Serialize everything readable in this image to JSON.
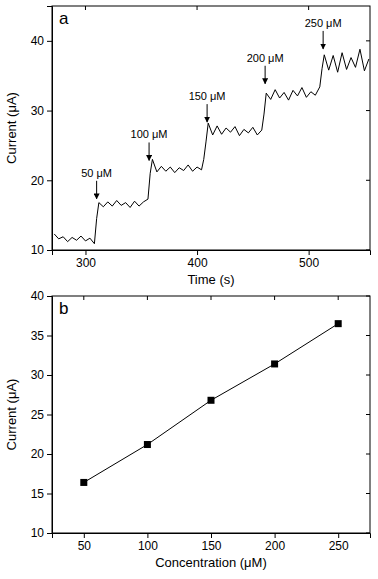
{
  "chart_data": [
    {
      "type": "line",
      "title": "a",
      "x_label": "Time (s)",
      "y_label": "Current (μA)",
      "xlim": [
        270,
        555
      ],
      "xticks": [
        300,
        400,
        500
      ],
      "ylim": [
        10,
        45
      ],
      "yticks": [
        10,
        20,
        30,
        40
      ],
      "color": "#000000",
      "x": [
        272,
        276,
        280,
        284,
        288,
        292,
        296,
        300,
        304,
        308,
        310,
        312,
        316,
        320,
        324,
        328,
        332,
        336,
        340,
        344,
        348,
        352,
        356,
        358,
        360,
        364,
        368,
        372,
        376,
        380,
        384,
        388,
        392,
        396,
        400,
        404,
        406,
        408,
        410,
        414,
        418,
        422,
        426,
        430,
        434,
        438,
        442,
        446,
        450,
        454,
        458,
        460,
        462,
        466,
        470,
        474,
        478,
        482,
        486,
        490,
        494,
        498,
        502,
        506,
        510,
        512,
        514,
        518,
        522,
        526,
        530,
        534,
        538,
        542,
        546,
        550,
        554
      ],
      "values": [
        12.3,
        11.6,
        11.9,
        11.2,
        11.8,
        11.4,
        12.0,
        11.3,
        11.7,
        10.9,
        14.5,
        16.8,
        16.2,
        16.9,
        16.3,
        17.1,
        16.4,
        16.8,
        16.1,
        17.0,
        16.3,
        16.9,
        17.3,
        21.0,
        23.0,
        21.2,
        22.0,
        21.3,
        21.9,
        21.1,
        21.8,
        21.4,
        22.2,
        21.3,
        21.9,
        21.5,
        23.0,
        25.5,
        28.2,
        26.5,
        27.8,
        26.6,
        27.5,
        26.9,
        27.7,
        26.4,
        27.3,
        26.8,
        27.6,
        26.5,
        27.2,
        29.5,
        32.5,
        31.6,
        33.0,
        31.8,
        32.6,
        31.5,
        32.9,
        32.1,
        33.3,
        31.9,
        32.7,
        32.2,
        33.4,
        36.0,
        38.0,
        35.8,
        37.9,
        35.5,
        38.3,
        35.9,
        37.6,
        36.2,
        38.8,
        35.7,
        37.4
      ],
      "annotations": [
        {
          "text": "50 μM",
          "x": 310,
          "y": 20.5
        },
        {
          "text": "100 μM",
          "x": 357,
          "y": 26
        },
        {
          "text": "150 μM",
          "x": 409,
          "y": 31.5
        },
        {
          "text": "200 μM",
          "x": 461,
          "y": 37
        },
        {
          "text": "250 μM",
          "x": 513,
          "y": 42
        }
      ]
    },
    {
      "type": "line",
      "title": "b",
      "x_label": "Concentration (μM)",
      "y_label": "Current (μA)",
      "xlim": [
        25,
        275
      ],
      "xticks": [
        50,
        100,
        150,
        200,
        250
      ],
      "ylim": [
        10,
        40
      ],
      "yticks": [
        10,
        15,
        20,
        25,
        30,
        35,
        40
      ],
      "color": "#000000",
      "marker": "square",
      "x": [
        50,
        100,
        150,
        200,
        250
      ],
      "values": [
        16.4,
        21.2,
        26.8,
        31.4,
        36.5
      ]
    }
  ]
}
